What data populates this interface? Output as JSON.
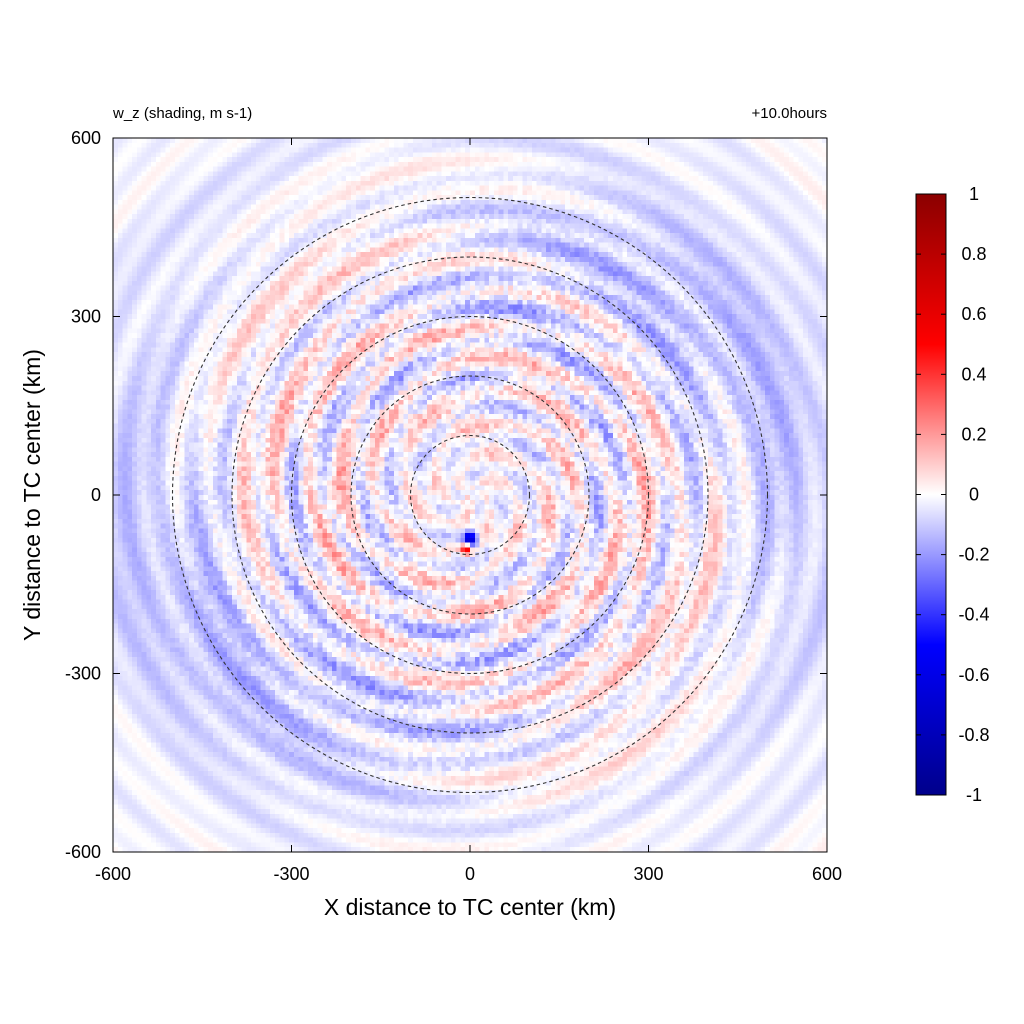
{
  "chart_data": {
    "type": "heatmap",
    "title": "w_z (shading, m s-1)",
    "subtitle": "+10.0hours",
    "xlabel": "X distance to TC center (km)",
    "ylabel": "Y distance to TC center (km)",
    "xlim": [
      -600,
      600
    ],
    "ylim": [
      -600,
      600
    ],
    "xticks": [
      "-600",
      "-300",
      "0",
      "300",
      "600"
    ],
    "yticks": [
      "-600",
      "-300",
      "0",
      "300",
      "600"
    ],
    "xtick_values": [
      -600,
      -300,
      0,
      300,
      600
    ],
    "ytick_values": [
      -600,
      -300,
      0,
      300,
      600
    ],
    "rings_km": [
      100,
      200,
      300,
      400,
      500
    ],
    "colorbar": {
      "range": [
        -1,
        1
      ],
      "ticks": [
        "1",
        "0.8",
        "0.6",
        "0.4",
        "0.2",
        "0",
        "-0.2",
        "-0.4",
        "-0.6",
        "-0.8",
        "-1"
      ],
      "tick_values": [
        1,
        0.8,
        0.6,
        0.4,
        0.2,
        0,
        -0.2,
        -0.4,
        -0.6,
        -0.8,
        -1
      ],
      "colormap": [
        "#00008b",
        "#0000ff",
        "#ffffff",
        "#ff0000",
        "#8b0000"
      ]
    },
    "grid": false
  }
}
